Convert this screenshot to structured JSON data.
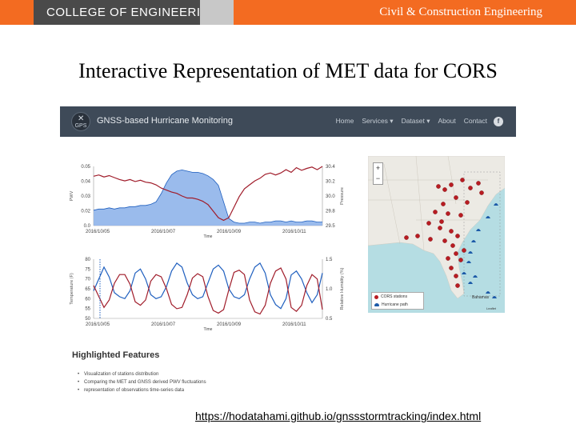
{
  "banner": {
    "college": "COLLEGE OF ENGINEERING",
    "department": "Civil & Construction Engineering"
  },
  "slide": {
    "title": "Interactive Representation of MET data for CORS",
    "url": "https://hodatahami.github.io/gnssstormtracking/index.html"
  },
  "app": {
    "logo_text": "GPS",
    "brand": "GNSS-based Hurricane Monitoring",
    "nav": [
      "Home",
      "Services ▾",
      "Dataset ▾",
      "About",
      "Contact"
    ],
    "toggle": "f"
  },
  "colors": {
    "banner": "#f36b21",
    "navbar": "#3e4a58",
    "series_blue": "#1f5fbf",
    "series_red": "#a01c2a",
    "station": "#b81c22",
    "hurricane": "#1c5aa8"
  },
  "chart_data": [
    {
      "type": "area",
      "xlabel": "Time",
      "ylabel_left": "PWV",
      "ylabel_right": "Pressure",
      "x_ticks": [
        "2016/10/05",
        "2016/10/07",
        "2016/10/09",
        "2016/10/11"
      ],
      "y_left_ticks": [
        "0.05",
        "0.04",
        "0.03",
        "0.02",
        "0.0"
      ],
      "y_right_ticks": [
        "30.4",
        "30.2",
        "30.0",
        "29.8",
        "29.5"
      ],
      "ylim_left": [
        0,
        0.05
      ],
      "ylim_right": [
        29.5,
        30.4
      ],
      "series": [
        {
          "axis": "left",
          "values": [
            0.013,
            0.014,
            0.014,
            0.015,
            0.014,
            0.015,
            0.015,
            0.016,
            0.016,
            0.017,
            0.017,
            0.018,
            0.02,
            0.027,
            0.036,
            0.043,
            0.046,
            0.047,
            0.046,
            0.045,
            0.045,
            0.044,
            0.042,
            0.039,
            0.034,
            0.02,
            0.006,
            0.003,
            0.002,
            0.002,
            0.003,
            0.003,
            0.002,
            0.003,
            0.003,
            0.004,
            0.004,
            0.003,
            0.004,
            0.003,
            0.003,
            0.004,
            0.004,
            0.003,
            0.003
          ]
        },
        {
          "axis": "right",
          "values": [
            30.25,
            30.27,
            30.24,
            30.26,
            30.23,
            30.2,
            30.18,
            30.2,
            30.17,
            30.19,
            30.16,
            30.15,
            30.12,
            30.07,
            30.04,
            30.01,
            29.99,
            29.95,
            29.92,
            29.92,
            29.9,
            29.87,
            29.82,
            29.72,
            29.62,
            29.58,
            29.62,
            29.78,
            29.94,
            30.06,
            30.12,
            30.18,
            30.22,
            30.28,
            30.3,
            30.27,
            30.3,
            30.35,
            30.31,
            30.38,
            30.34,
            30.37,
            30.39,
            30.35,
            30.4
          ]
        }
      ]
    },
    {
      "type": "line",
      "xlabel": "Time",
      "ylabel_left": "Temperature (F)",
      "ylabel_right": "Relative Humidity (%)",
      "x_ticks": [
        "2016/10/05",
        "2016/10/07",
        "2016/10/09",
        "2016/10/11"
      ],
      "y_left_ticks": [
        "80",
        "75",
        "70",
        "65",
        "60",
        "55",
        "50"
      ],
      "y_right_ticks": [
        "1.5",
        "1.0",
        "0.5"
      ],
      "ylim_left": [
        50,
        80
      ],
      "ylim_right": [
        0.3,
        1.65
      ],
      "series": [
        {
          "axis": "left",
          "values": [
            64,
            70,
            76,
            71,
            63,
            61,
            60,
            64,
            73,
            75,
            70,
            62,
            60,
            61,
            66,
            74,
            78,
            76,
            68,
            62,
            60,
            61,
            68,
            75,
            77,
            74,
            65,
            61,
            60,
            62,
            70,
            76,
            78,
            73,
            62,
            57,
            55,
            60,
            72,
            74,
            70,
            63,
            58,
            62,
            73
          ]
        },
        {
          "axis": "right",
          "values": [
            1.05,
            0.8,
            0.55,
            0.72,
            1.1,
            1.3,
            1.3,
            1.08,
            0.68,
            0.6,
            0.72,
            1.15,
            1.3,
            1.25,
            0.98,
            0.62,
            0.52,
            0.55,
            0.84,
            1.22,
            1.32,
            1.25,
            0.8,
            0.48,
            0.42,
            0.5,
            0.95,
            1.35,
            1.4,
            1.3,
            0.72,
            0.45,
            0.4,
            0.6,
            1.1,
            1.38,
            1.45,
            1.2,
            0.55,
            0.46,
            0.6,
            1.05,
            1.3,
            1.2,
            0.5
          ]
        }
      ]
    }
  ],
  "map": {
    "zoom": [
      "+",
      "−"
    ],
    "legend": [
      "CORS stations",
      "Hurricane path"
    ],
    "label_city": "Bahamas",
    "attribution": "Leaflet"
  },
  "features": {
    "title": "Highlighted Features",
    "items": [
      "Visualization of stations distribution",
      "Comparing the MET and GNSS derived PWV fluctuations",
      "representation of observations time-series data"
    ]
  }
}
